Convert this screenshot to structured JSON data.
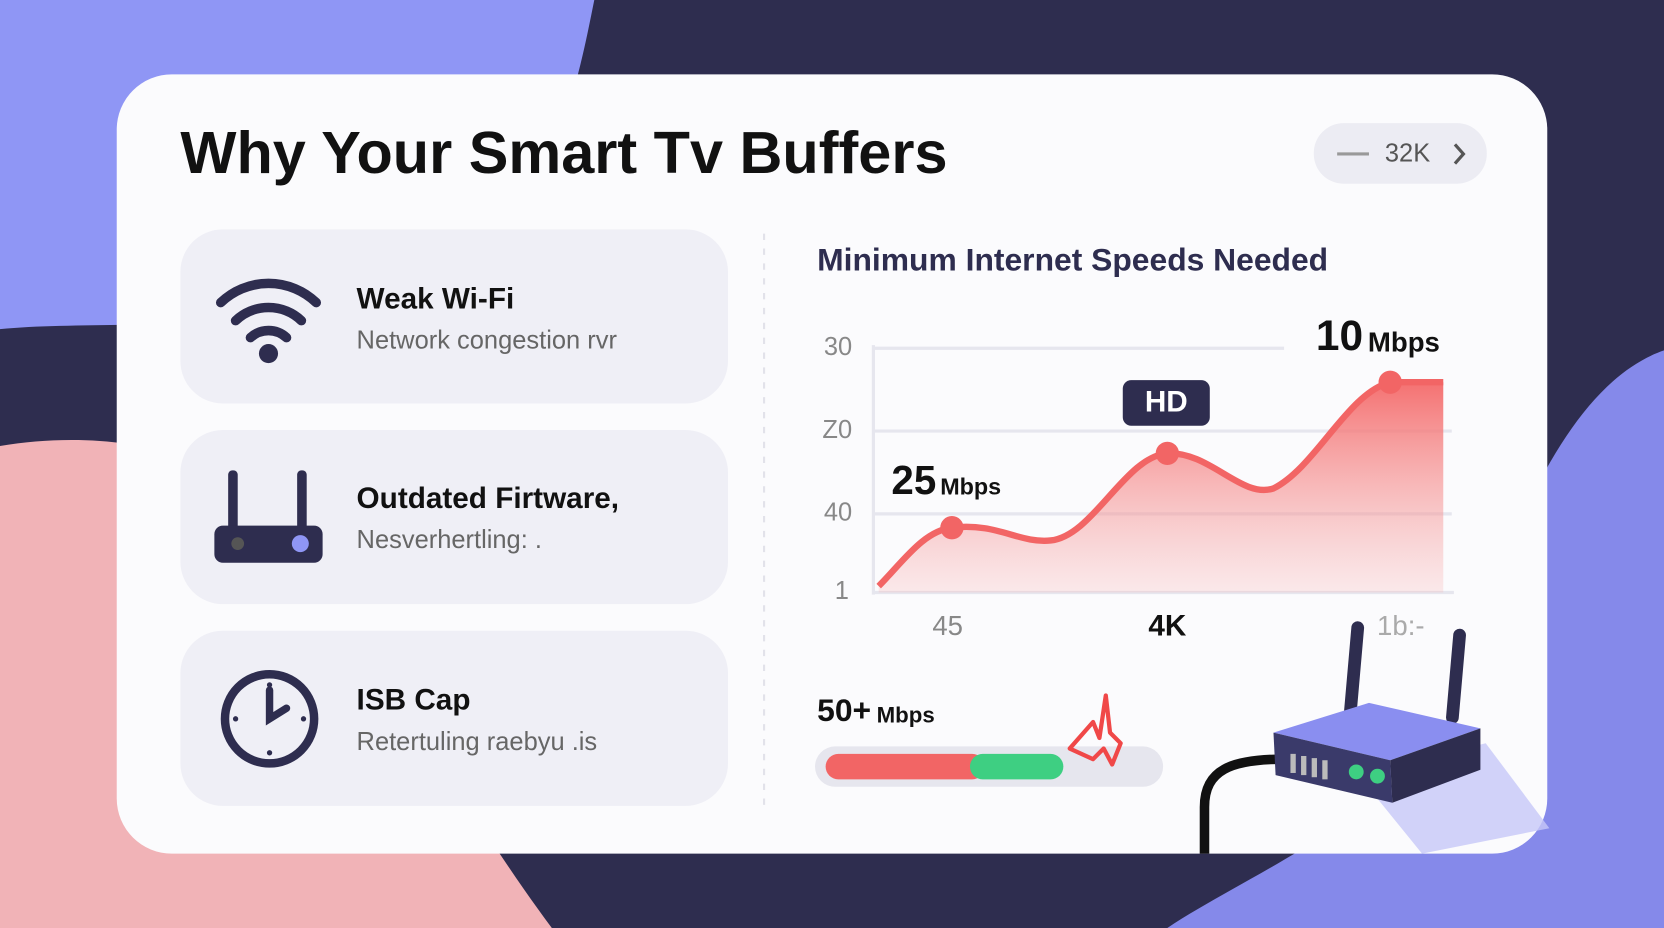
{
  "header": {
    "title": "Why Your Smart Tv Buffers",
    "badge": "32K"
  },
  "causes": [
    {
      "title": "Weak Wi-Fi",
      "subtitle": "Network congestion rvr"
    },
    {
      "title": "Outdated Firtware,",
      "subtitle": "Nesverhertling: ."
    },
    {
      "title": "ISB Cap",
      "subtitle": "Retertuling raebyu .is"
    }
  ],
  "speeds": {
    "title": "Minimum Internet Speeds Needed",
    "y_labels": [
      "30",
      "Z0",
      "40",
      "1"
    ],
    "x_labels": [
      "45",
      "4K",
      "1b:-"
    ],
    "callouts": [
      {
        "value": "25",
        "unit": "Mbps"
      },
      {
        "value": "HD"
      },
      {
        "value": "10",
        "unit": "Mbps"
      }
    ],
    "bar": {
      "value": "50+",
      "unit": "Mbps"
    }
  }
}
